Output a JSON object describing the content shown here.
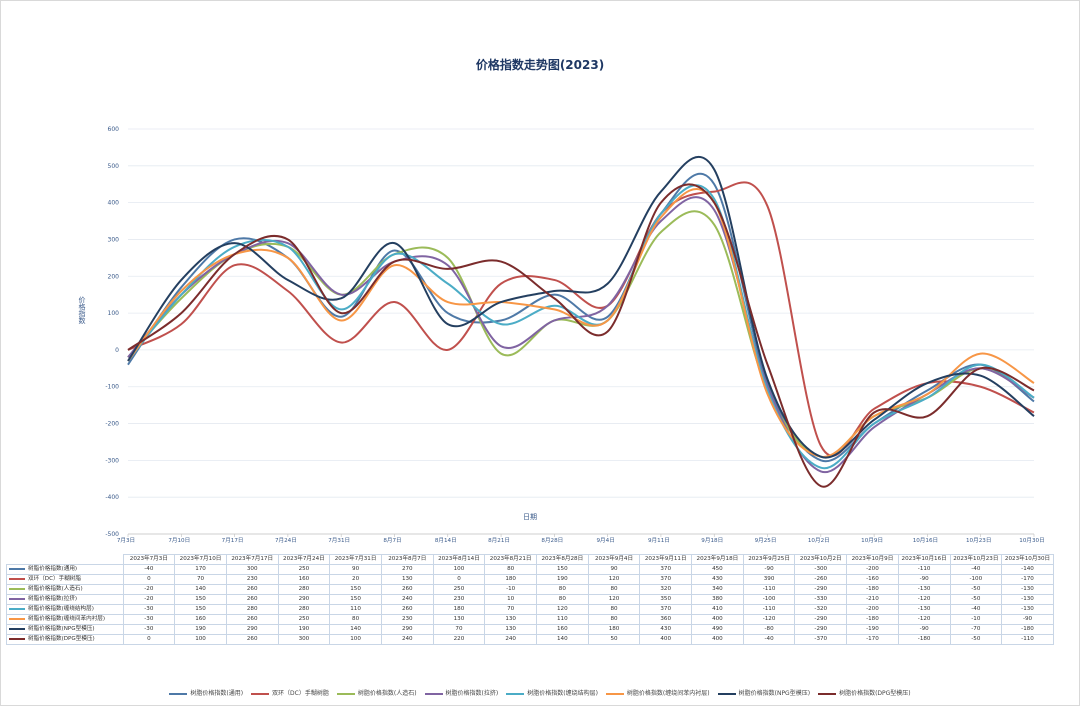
{
  "chart_data": {
    "type": "line",
    "title": "价格指数走势图(2023)",
    "xlabel": "日期",
    "ylabel": "价格指数",
    "ylim": [
      -500,
      600
    ],
    "yticks": [
      600,
      500,
      400,
      300,
      200,
      100,
      0,
      -100,
      -200,
      -300,
      -400,
      -500
    ],
    "grid": true,
    "legend_position": "bottom",
    "categories": [
      "7月3日",
      "7月10日",
      "7月17日",
      "7月24日",
      "7月31日",
      "8月7日",
      "8月14日",
      "8月21日",
      "8月28日",
      "9月4日",
      "9月11日",
      "9月18日",
      "9月25日",
      "10月2日",
      "10月9日",
      "10月16日",
      "10月23日",
      "10月30日"
    ],
    "table_headers": [
      "2023年7月3日",
      "2023年7月10日",
      "2023年7月17日",
      "2023年7月24日",
      "2023年7月31日",
      "2023年8月7日",
      "2023年8月14日",
      "2023年8月21日",
      "2023年8月28日",
      "2023年9月4日",
      "2023年9月11日",
      "2023年9月18日",
      "2023年9月25日",
      "2023年10月2日",
      "2023年10月9日",
      "2023年10月16日",
      "2023年10月23日",
      "2023年10月30日"
    ],
    "series": [
      {
        "name": "树脂价格指数(通用)",
        "color": "#4e79a7",
        "values": [
          -40,
          170,
          300,
          250,
          90,
          270,
          100,
          80,
          150,
          90,
          370,
          450,
          -90,
          -300,
          -200,
          -110,
          -40,
          -140
        ]
      },
      {
        "name": "双环（DC）手糊树脂",
        "color": "#c0504d",
        "values": [
          0,
          70,
          230,
          160,
          20,
          130,
          0,
          180,
          190,
          120,
          370,
          430,
          390,
          -260,
          -160,
          -90,
          -100,
          -170
        ]
      },
      {
        "name": "树脂价格指数(人造石)",
        "color": "#9bbb59",
        "values": [
          -20,
          140,
          260,
          280,
          150,
          260,
          250,
          -10,
          80,
          80,
          320,
          340,
          -110,
          -290,
          -180,
          -130,
          -50,
          -130
        ]
      },
      {
        "name": "树脂价格指数(拉挤)",
        "color": "#8064a2",
        "values": [
          -20,
          150,
          260,
          290,
          150,
          240,
          230,
          10,
          80,
          120,
          350,
          380,
          -100,
          -330,
          -210,
          -120,
          -50,
          -130
        ]
      },
      {
        "name": "树脂价格指数(缠绕结构层)",
        "color": "#4bacc6",
        "values": [
          -30,
          150,
          280,
          280,
          110,
          260,
          180,
          70,
          120,
          80,
          370,
          410,
          -110,
          -320,
          -200,
          -130,
          -40,
          -130
        ]
      },
      {
        "name": "树脂价格指数(缠绕间苯内衬层)",
        "color": "#f79646",
        "values": [
          -30,
          160,
          260,
          250,
          80,
          230,
          130,
          130,
          110,
          80,
          360,
          400,
          -120,
          -290,
          -180,
          -120,
          -10,
          -90
        ]
      },
      {
        "name": "树脂价格指数(NPG型模压)",
        "color": "#243f60",
        "values": [
          -30,
          190,
          290,
          190,
          140,
          290,
          70,
          130,
          160,
          180,
          430,
          490,
          -80,
          -290,
          -190,
          -90,
          -70,
          -180
        ]
      },
      {
        "name": "树脂价格指数(DPG型模压)",
        "color": "#7b2c2c",
        "values": [
          0,
          100,
          260,
          300,
          100,
          240,
          220,
          240,
          140,
          50,
          400,
          400,
          -40,
          -370,
          -170,
          -180,
          -50,
          -110
        ]
      }
    ]
  }
}
